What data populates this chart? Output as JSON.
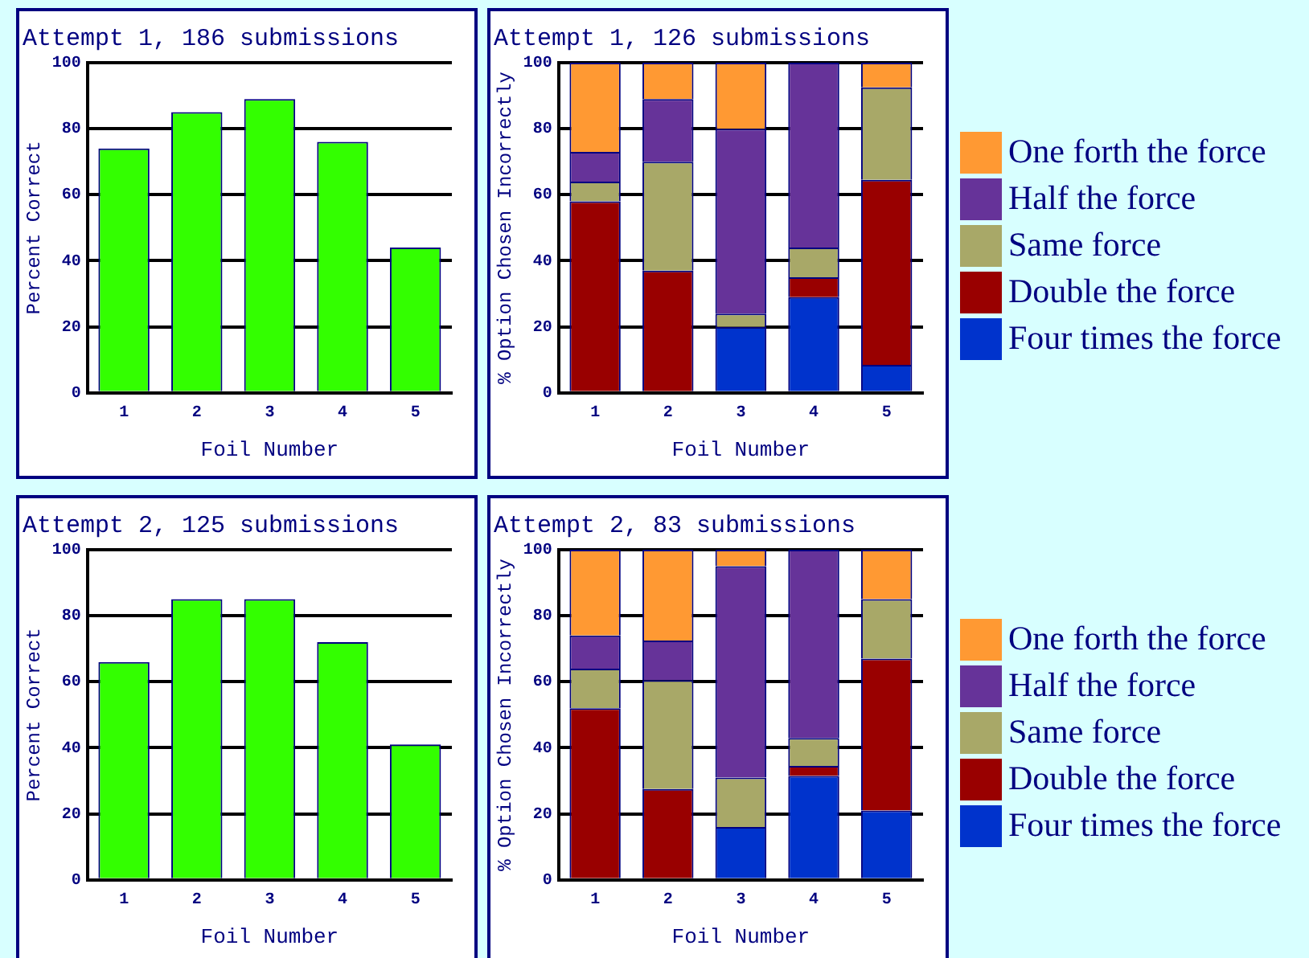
{
  "chart_data": [
    {
      "type": "bar",
      "title": "Attempt 1, 186 submissions",
      "xlabel": "Foil Number",
      "ylabel": "Percent Correct",
      "categories": [
        "1",
        "2",
        "3",
        "4",
        "5"
      ],
      "values": [
        74,
        85,
        89,
        76,
        44
      ],
      "color": "#33ff00",
      "ylim": [
        0,
        100
      ],
      "yticks": [
        0,
        20,
        40,
        60,
        80,
        100
      ],
      "grid": "y"
    },
    {
      "type": "bar",
      "title": "Attempt 1, 126 submissions",
      "xlabel": "Foil Number",
      "ylabel": "% Option Chosen Incorrectly",
      "categories": [
        "1",
        "2",
        "3",
        "4",
        "5"
      ],
      "stacked": true,
      "ylim": [
        0,
        100
      ],
      "yticks": [
        0,
        20,
        40,
        60,
        80,
        100
      ],
      "grid": "y",
      "legend": "right",
      "series": [
        {
          "name": "Four times the force",
          "color": "#0033cc",
          "values": [
            0,
            0,
            20,
            29,
            8.5
          ]
        },
        {
          "name": "Double the force",
          "color": "#990000",
          "values": [
            58,
            37,
            0,
            6,
            56
          ]
        },
        {
          "name": "Same force",
          "color": "#a8a868",
          "values": [
            6,
            33,
            4,
            9,
            28
          ]
        },
        {
          "name": "Half the force",
          "color": "#663399",
          "values": [
            9,
            19,
            56,
            56,
            0
          ]
        },
        {
          "name": "One forth the force",
          "color": "#ff9933",
          "values": [
            27,
            11,
            20,
            0,
            7.5
          ]
        }
      ]
    },
    {
      "type": "bar",
      "title": "Attempt 2, 125 submissions",
      "xlabel": "Foil Number",
      "ylabel": "Percent Correct",
      "categories": [
        "1",
        "2",
        "3",
        "4",
        "5"
      ],
      "values": [
        66,
        85,
        85,
        72,
        41
      ],
      "color": "#33ff00",
      "ylim": [
        0,
        100
      ],
      "yticks": [
        0,
        20,
        40,
        60,
        80,
        100
      ],
      "grid": "y"
    },
    {
      "type": "bar",
      "title": "Attempt 2, 83 submissions",
      "xlabel": "Foil Number",
      "ylabel": "% Option Chosen Incorrectly",
      "categories": [
        "1",
        "2",
        "3",
        "4",
        "5"
      ],
      "stacked": true,
      "ylim": [
        0,
        100
      ],
      "yticks": [
        0,
        20,
        40,
        60,
        80,
        100
      ],
      "grid": "y",
      "legend": "right",
      "series": [
        {
          "name": "Four times the force",
          "color": "#0033cc",
          "values": [
            0,
            0,
            16,
            31.5,
            21
          ]
        },
        {
          "name": "Double the force",
          "color": "#990000",
          "values": [
            52,
            27.5,
            0,
            3,
            46
          ]
        },
        {
          "name": "Same force",
          "color": "#a8a868",
          "values": [
            12,
            33,
            15,
            8.5,
            18
          ]
        },
        {
          "name": "Half the force",
          "color": "#663399",
          "values": [
            10,
            12,
            64,
            57,
            0
          ]
        },
        {
          "name": "One forth the force",
          "color": "#ff9933",
          "values": [
            26,
            27.5,
            5,
            0,
            15
          ]
        }
      ]
    }
  ]
}
